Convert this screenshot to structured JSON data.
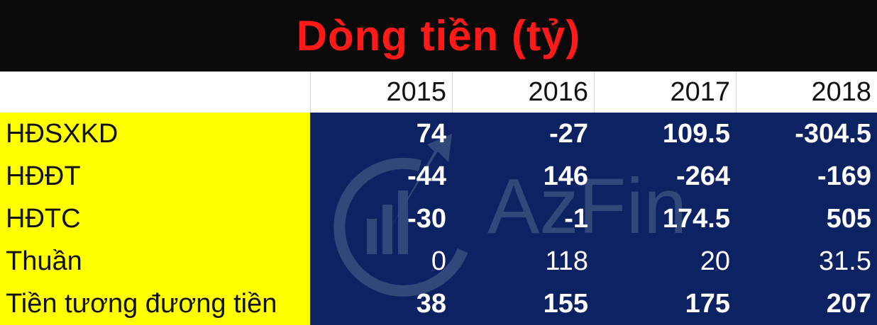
{
  "title": "Dòng tiền (tỷ)",
  "years": [
    "2015",
    "2016",
    "2017",
    "2018"
  ],
  "rows": [
    {
      "label": "HĐSXKD",
      "values": [
        "74",
        "-27",
        "109.5",
        "-304.5"
      ],
      "bold": true
    },
    {
      "label": "HĐĐT",
      "values": [
        "-44",
        "146",
        "-264",
        "-169"
      ],
      "bold": true
    },
    {
      "label": "HĐTC",
      "values": [
        "-30",
        "-1",
        "174.5",
        "505"
      ],
      "bold": true
    },
    {
      "label": "Thuần",
      "values": [
        "0",
        "118",
        "20",
        "31.5"
      ],
      "bold": false
    },
    {
      "label": "Tiền tương đương tiền",
      "values": [
        "38",
        "155",
        "175",
        "207"
      ],
      "bold": true
    }
  ],
  "watermark": {
    "text": "AzFin",
    "icon": "growth-chart-logo-icon"
  },
  "colors": {
    "title_bg": "#0a0a0a",
    "title_text": "#ff1a1a",
    "label_bg": "#ffff00",
    "data_bg": "#0d2263",
    "data_text": "#ffffff"
  }
}
